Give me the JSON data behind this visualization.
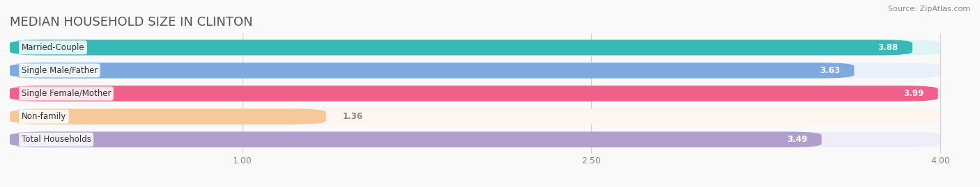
{
  "title": "MEDIAN HOUSEHOLD SIZE IN CLINTON",
  "source": "Source: ZipAtlas.com",
  "categories": [
    "Married-Couple",
    "Single Male/Father",
    "Single Female/Mother",
    "Non-family",
    "Total Households"
  ],
  "values": [
    3.88,
    3.63,
    3.99,
    1.36,
    3.49
  ],
  "bar_colors": [
    "#38b8b8",
    "#7eaadf",
    "#f0608a",
    "#f5c99a",
    "#b09fcc"
  ],
  "bar_bg_colors": [
    "#e0f4f4",
    "#eaf0fa",
    "#fce8f0",
    "#fdf5ee",
    "#f0ecf8"
  ],
  "xlim": [
    0.0,
    4.15
  ],
  "xmin": 0.0,
  "xmax": 4.0,
  "xticks": [
    1.0,
    2.5,
    4.0
  ],
  "value_color": "white",
  "label_color": "#333333",
  "title_color": "#555555",
  "title_fontsize": 13,
  "bar_height": 0.68,
  "bar_gap": 0.18,
  "background_color": "#f9f9f9"
}
